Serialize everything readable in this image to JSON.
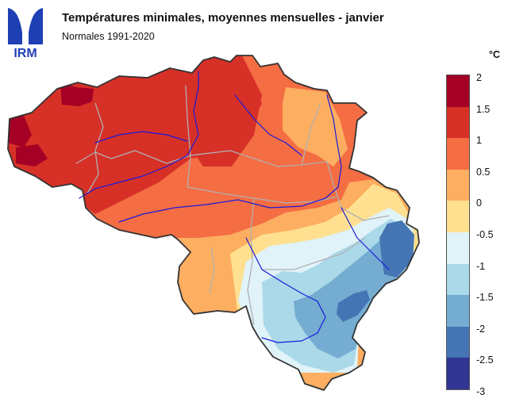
{
  "header": {
    "logo_text": "IRM",
    "title": "Températures minimales, moyennes mensuelles - janvier",
    "subtitle": "Normales 1991-2020"
  },
  "legend": {
    "unit": "°C",
    "ticks": [
      "2",
      "1.5",
      "1",
      "0.5",
      "0",
      "-0.5",
      "-1",
      "-1.5",
      "-2",
      "-2.5",
      "-3"
    ],
    "colors": [
      "#a50026",
      "#d73027",
      "#f46d43",
      "#fdae61",
      "#fee090",
      "#e0f3f8",
      "#abd9e9",
      "#74add1",
      "#4575b4",
      "#313695"
    ]
  },
  "map": {
    "border_color": "#333333",
    "province_color": "#b0b0b0",
    "river_color": "#1a1adc"
  }
}
